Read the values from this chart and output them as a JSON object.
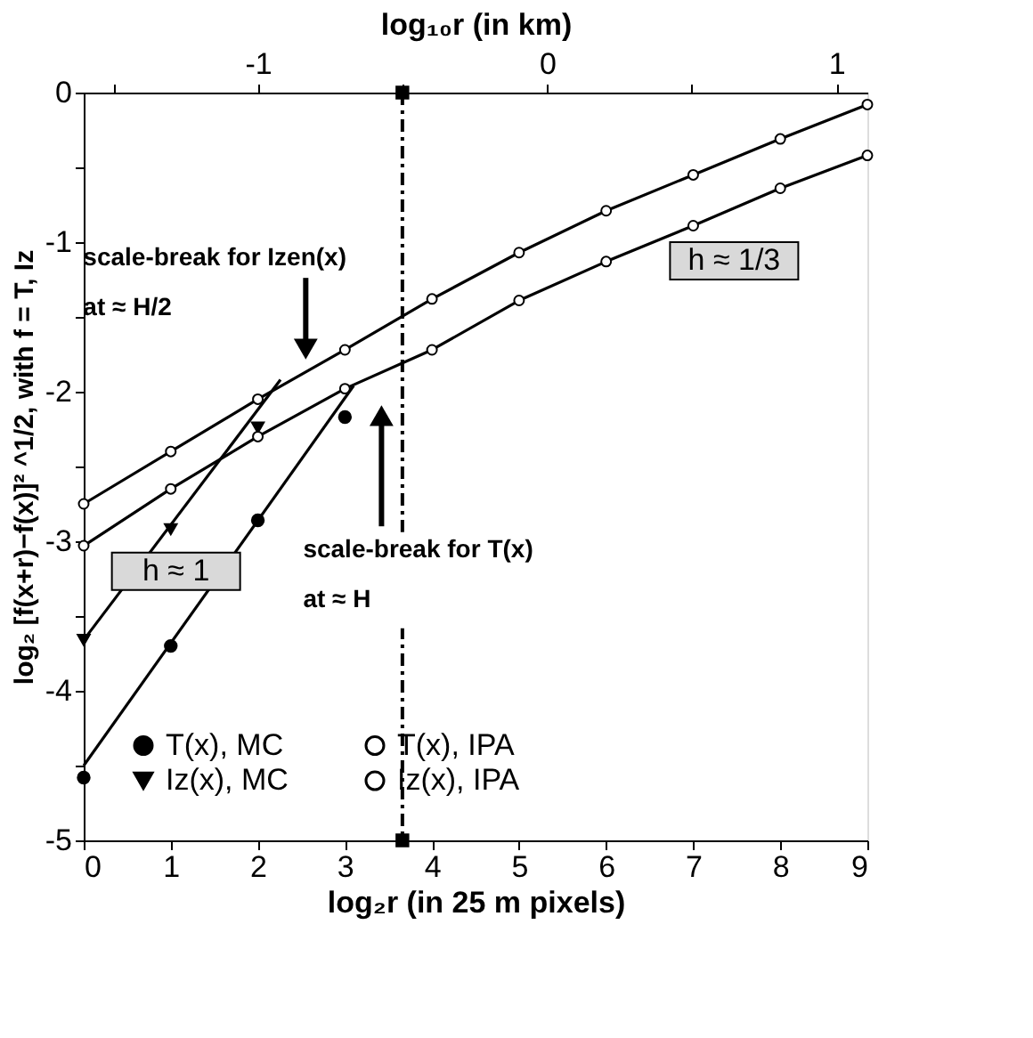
{
  "chart_data": {
    "type": "line",
    "xlabel": "log₂r (in 25 m pixels)",
    "x2label": "log₁₀r (in km)",
    "ylabel": "log₂ [f(x+r)−f(x)]² ^1/2, with f = T, Iz",
    "xlim": [
      0,
      9
    ],
    "xticks": [
      0,
      1,
      2,
      3,
      4,
      5,
      6,
      7,
      8,
      9
    ],
    "x2lim": [
      -1.602,
      1.107
    ],
    "x2ticks": [
      {
        "value": -1.5,
        "label": null
      },
      -1,
      {
        "value": -0.5,
        "label": null
      },
      0,
      {
        "value": 0.5,
        "label": null
      },
      1
    ],
    "ylim": [
      -5,
      0
    ],
    "yticks": [
      -5,
      {
        "value": -4.5,
        "label": null
      },
      -4,
      {
        "value": -3.5,
        "label": null
      },
      -3,
      {
        "value": -2.5,
        "label": null
      },
      -2,
      {
        "value": -1.5,
        "label": null
      },
      -1,
      {
        "value": -0.5,
        "label": null
      },
      0
    ],
    "grid": false,
    "legend": "bottom left",
    "series": [
      {
        "name": "T(x), MC",
        "type": "scatter",
        "marker": "circle",
        "color": "#000000",
        "x": [
          0,
          1,
          2,
          3
        ],
        "values": [
          -4.58,
          -3.7,
          -2.86,
          -2.17
        ]
      },
      {
        "name": "Iz(x), MC",
        "type": "scatter",
        "marker": "triangle",
        "color": "#000000",
        "x": [
          0,
          1,
          2
        ],
        "values": [
          -3.66,
          -2.92,
          -2.24
        ]
      },
      {
        "name": "T(x), IPA",
        "marker": "circle",
        "line_style": "solid",
        "color": "#000000",
        "x": [
          0,
          1,
          2,
          3,
          4,
          5,
          6,
          7,
          8,
          9
        ],
        "values": [
          -3.03,
          -2.65,
          -2.3,
          -1.98,
          -1.72,
          -1.39,
          -1.13,
          -0.89,
          -0.64,
          -0.42
        ]
      },
      {
        "name": "Iz(x), IPA",
        "marker": "circle",
        "line_style": "solid",
        "color": "#000000",
        "x": [
          0,
          1,
          2,
          3,
          4,
          5,
          6,
          7,
          8,
          9
        ],
        "values": [
          -2.75,
          -2.4,
          -2.05,
          -1.72,
          -1.38,
          -1.07,
          -0.79,
          -0.55,
          -0.31,
          -0.08
        ]
      },
      {
        "marker": "none",
        "line_style": "solid",
        "color": "#000000",
        "x": [
          0,
          3.1
        ],
        "values": [
          -4.5,
          -1.96
        ]
      },
      {
        "marker": "none",
        "line_style": "solid",
        "color": "#000000",
        "x": [
          0,
          2.26
        ],
        "values": [
          -3.66,
          -1.92
        ]
      },
      {
        "type": "scatter",
        "marker": "square",
        "color": "#000000",
        "x": [
          3.66,
          3.66
        ],
        "values": [
          0,
          -5
        ]
      }
    ],
    "ref_lines": [
      {
        "axis": "x",
        "value": 3.66,
        "line_style": "dashed",
        "color": "#000000"
      }
    ],
    "annotations": [
      {
        "text": "scale-break for Izen(x)\nat ≈ H/2",
        "x": 2.55,
        "y": -1.87
      },
      "scale-break for T(x)\nat ≈ H",
      "h ≈ 1/3",
      {
        "text": "h ≈ 1",
        "x": 1.06,
        "y": -3.63
      }
    ]
  }
}
